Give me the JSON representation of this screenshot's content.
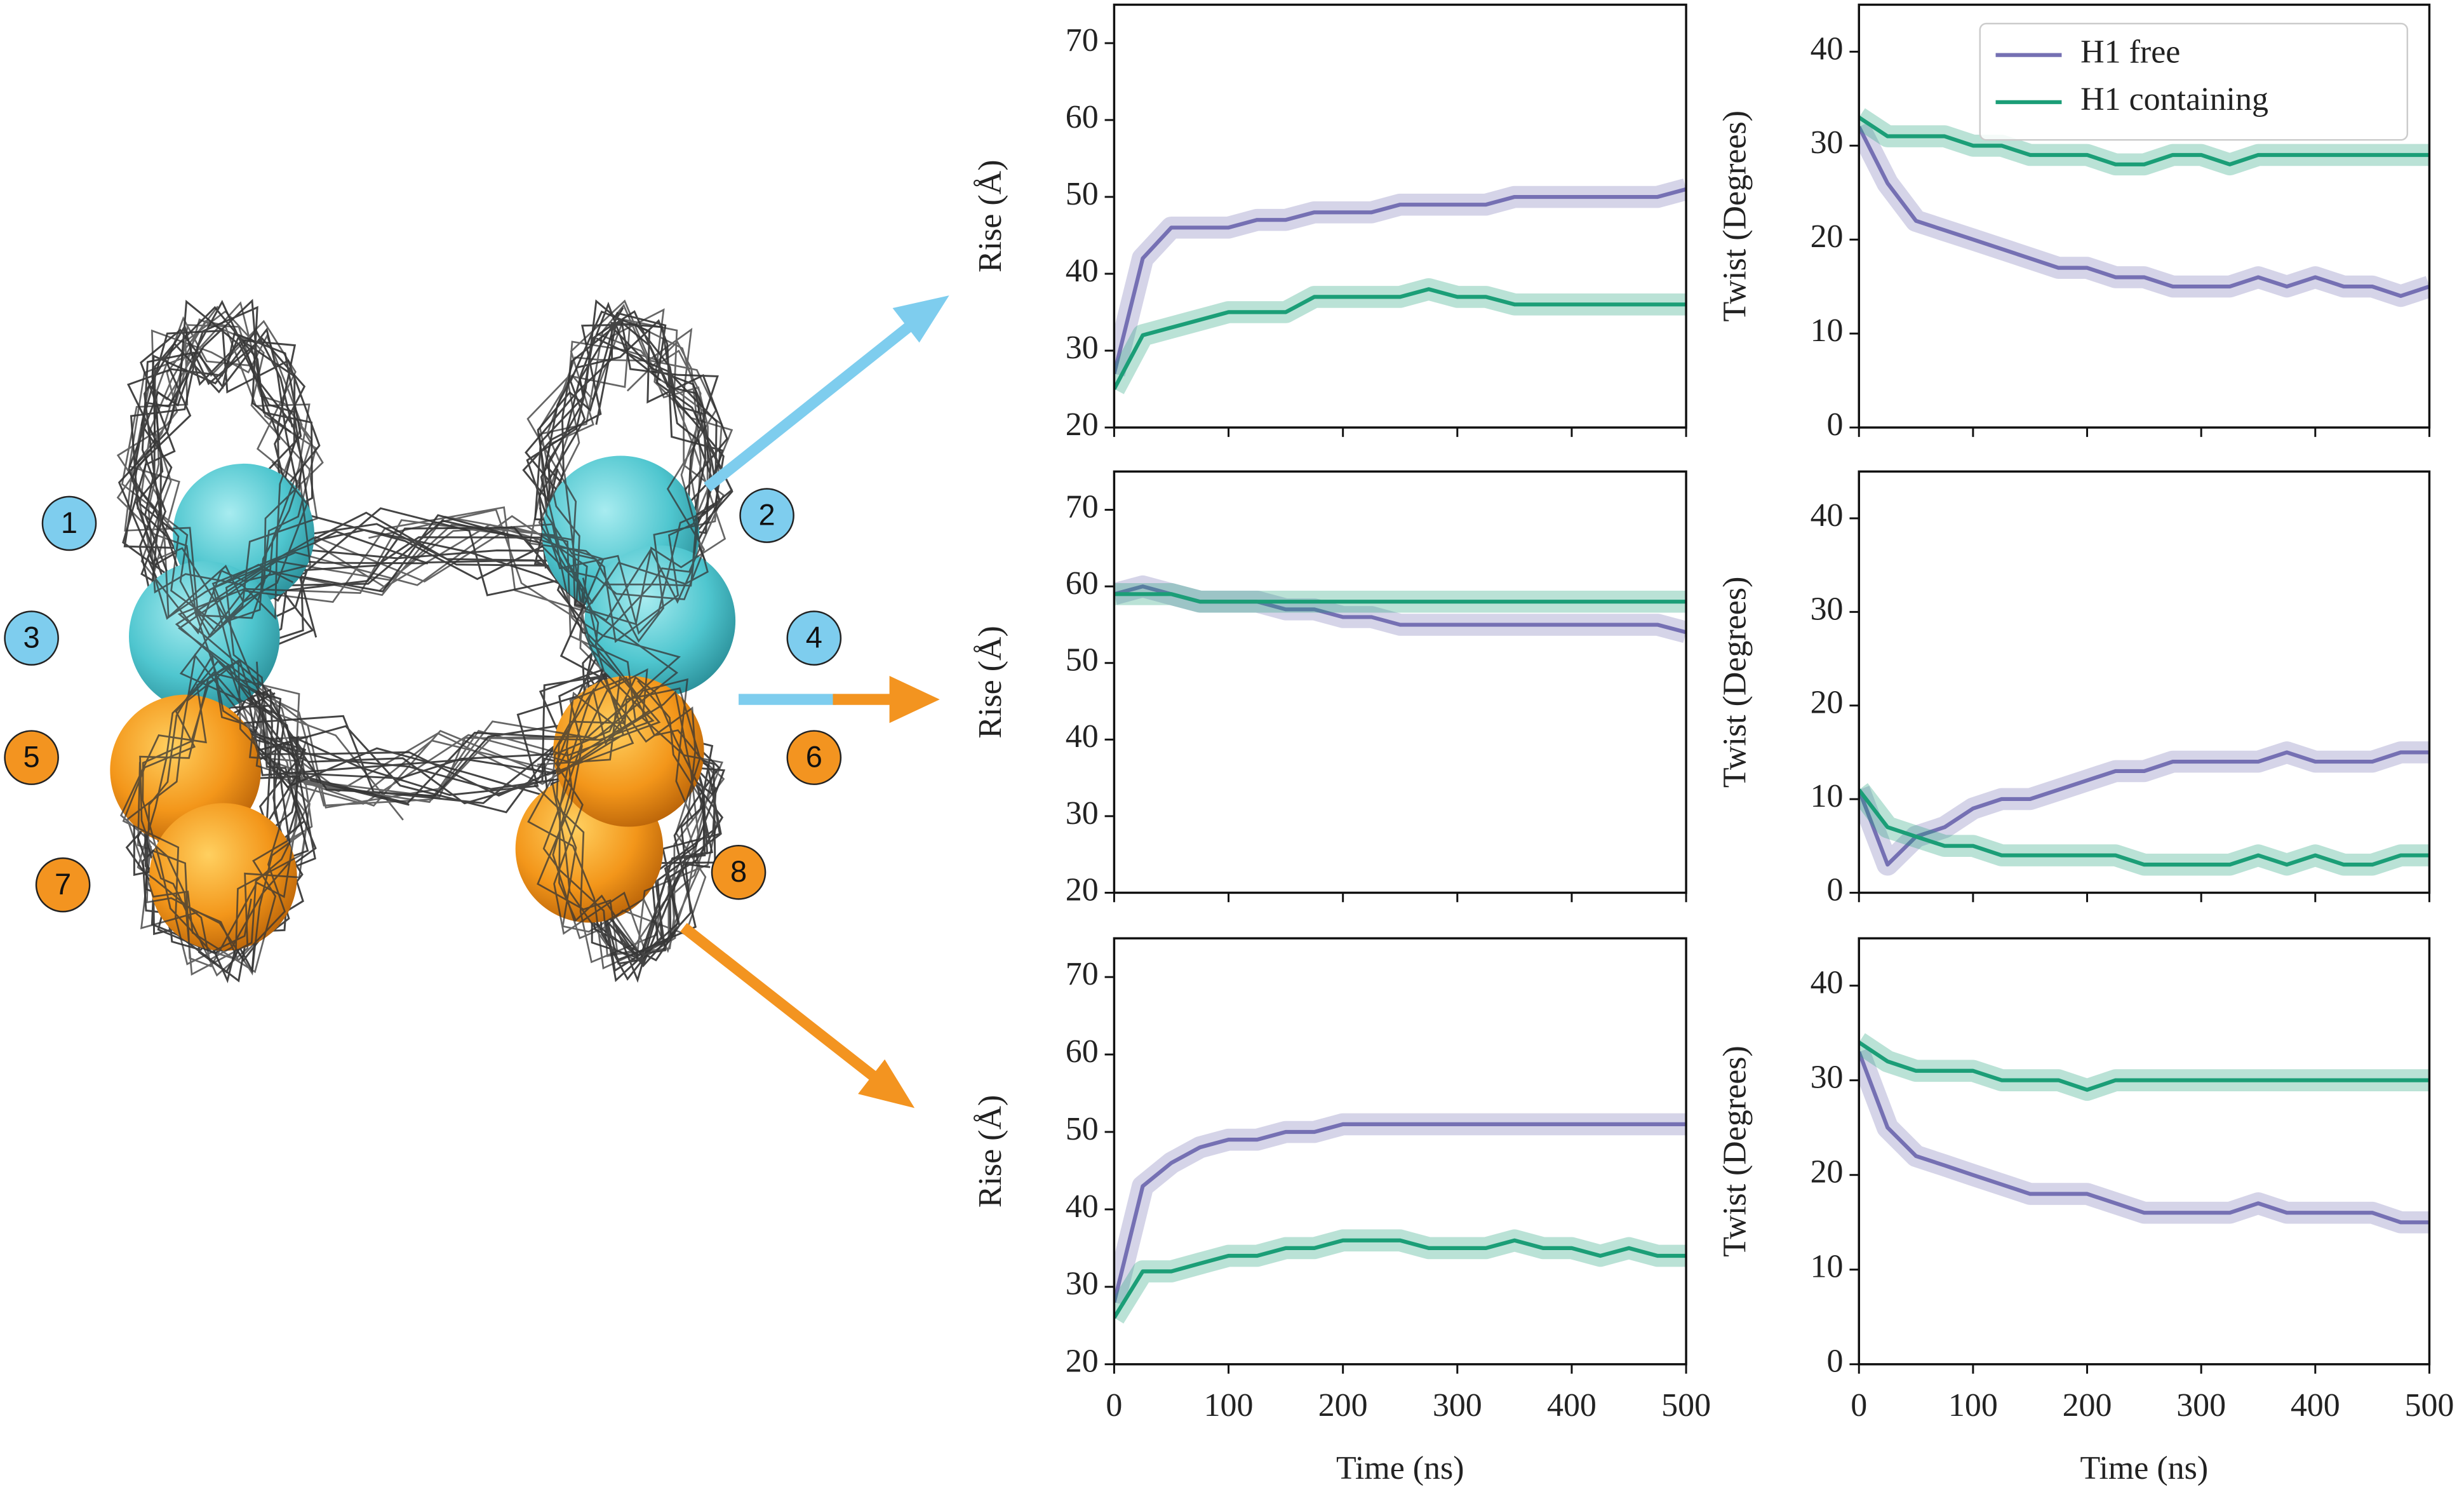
{
  "chart_data": [
    {
      "type": "line",
      "ylabel": "Rise (Å)",
      "x": [
        0,
        25,
        50,
        75,
        100,
        125,
        150,
        175,
        200,
        225,
        250,
        275,
        300,
        325,
        350,
        375,
        400,
        425,
        450,
        475,
        500
      ],
      "xlim": [
        0,
        500
      ],
      "xticks": [
        0,
        100,
        200,
        300,
        400,
        500
      ],
      "show_xticklabels": false,
      "ylim": [
        20,
        75
      ],
      "yticks": [
        20,
        30,
        40,
        50,
        60,
        70
      ],
      "series": [
        {
          "color": "#7570b3",
          "values": [
            27,
            42,
            46,
            46,
            46,
            47,
            47,
            48,
            48,
            48,
            49,
            49,
            49,
            49,
            50,
            50,
            50,
            50,
            50,
            50,
            51
          ]
        },
        {
          "color": "#1b9e77",
          "values": [
            25,
            32,
            33,
            34,
            35,
            35,
            35,
            37,
            37,
            37,
            37,
            38,
            37,
            37,
            36,
            36,
            36,
            36,
            36,
            36,
            36
          ]
        }
      ]
    },
    {
      "type": "line",
      "ylabel": "Twist (Degrees)",
      "x": [
        0,
        25,
        50,
        75,
        100,
        125,
        150,
        175,
        200,
        225,
        250,
        275,
        300,
        325,
        350,
        375,
        400,
        425,
        450,
        475,
        500
      ],
      "xlim": [
        0,
        500
      ],
      "xticks": [
        0,
        100,
        200,
        300,
        400,
        500
      ],
      "show_xticklabels": false,
      "ylim": [
        0,
        45
      ],
      "yticks": [
        0,
        10,
        20,
        30,
        40
      ],
      "legend": "upper right",
      "series": [
        {
          "name": "H1 free",
          "color": "#7570b3",
          "values": [
            32,
            26,
            22,
            21,
            20,
            19,
            18,
            17,
            17,
            16,
            16,
            15,
            15,
            15,
            16,
            15,
            16,
            15,
            15,
            14,
            15
          ]
        },
        {
          "name": "H1 containing",
          "color": "#1b9e77",
          "values": [
            33,
            31,
            31,
            31,
            30,
            30,
            29,
            29,
            29,
            28,
            28,
            29,
            29,
            28,
            29,
            29,
            29,
            29,
            29,
            29,
            29
          ]
        }
      ]
    },
    {
      "type": "line",
      "ylabel": "Rise (Å)",
      "x": [
        0,
        25,
        50,
        75,
        100,
        125,
        150,
        175,
        200,
        225,
        250,
        275,
        300,
        325,
        350,
        375,
        400,
        425,
        450,
        475,
        500
      ],
      "xlim": [
        0,
        500
      ],
      "xticks": [
        0,
        100,
        200,
        300,
        400,
        500
      ],
      "show_xticklabels": false,
      "ylim": [
        20,
        75
      ],
      "yticks": [
        20,
        30,
        40,
        50,
        60,
        70
      ],
      "series": [
        {
          "color": "#7570b3",
          "values": [
            59,
            60,
            59,
            58,
            58,
            58,
            57,
            57,
            56,
            56,
            55,
            55,
            55,
            55,
            55,
            55,
            55,
            55,
            55,
            55,
            54
          ]
        },
        {
          "color": "#1b9e77",
          "values": [
            59,
            59,
            59,
            58,
            58,
            58,
            58,
            58,
            58,
            58,
            58,
            58,
            58,
            58,
            58,
            58,
            58,
            58,
            58,
            58,
            58
          ]
        }
      ]
    },
    {
      "type": "line",
      "ylabel": "Twist (Degrees)",
      "x": [
        0,
        25,
        50,
        75,
        100,
        125,
        150,
        175,
        200,
        225,
        250,
        275,
        300,
        325,
        350,
        375,
        400,
        425,
        450,
        475,
        500
      ],
      "xlim": [
        0,
        500
      ],
      "xticks": [
        0,
        100,
        200,
        300,
        400,
        500
      ],
      "show_xticklabels": false,
      "ylim": [
        0,
        45
      ],
      "yticks": [
        0,
        10,
        20,
        30,
        40
      ],
      "series": [
        {
          "color": "#7570b3",
          "values": [
            11,
            3,
            6,
            7,
            9,
            10,
            10,
            11,
            12,
            13,
            13,
            14,
            14,
            14,
            14,
            15,
            14,
            14,
            14,
            15,
            15
          ]
        },
        {
          "color": "#1b9e77",
          "values": [
            11,
            7,
            6,
            5,
            5,
            4,
            4,
            4,
            4,
            4,
            3,
            3,
            3,
            3,
            4,
            3,
            4,
            3,
            3,
            4,
            4
          ]
        }
      ]
    },
    {
      "type": "line",
      "ylabel": "Rise (Å)",
      "xlabel": "Time (ns)",
      "x": [
        0,
        25,
        50,
        75,
        100,
        125,
        150,
        175,
        200,
        225,
        250,
        275,
        300,
        325,
        350,
        375,
        400,
        425,
        450,
        475,
        500
      ],
      "xlim": [
        0,
        500
      ],
      "xticks": [
        0,
        100,
        200,
        300,
        400,
        500
      ],
      "show_xticklabels": true,
      "ylim": [
        20,
        75
      ],
      "yticks": [
        20,
        30,
        40,
        50,
        60,
        70
      ],
      "series": [
        {
          "color": "#7570b3",
          "values": [
            28,
            43,
            46,
            48,
            49,
            49,
            50,
            50,
            51,
            51,
            51,
            51,
            51,
            51,
            51,
            51,
            51,
            51,
            51,
            51,
            51
          ]
        },
        {
          "color": "#1b9e77",
          "values": [
            26,
            32,
            32,
            33,
            34,
            34,
            35,
            35,
            36,
            36,
            36,
            35,
            35,
            35,
            36,
            35,
            35,
            34,
            35,
            34,
            34
          ]
        }
      ]
    },
    {
      "type": "line",
      "ylabel": "Twist (Degrees)",
      "xlabel": "Time (ns)",
      "x": [
        0,
        25,
        50,
        75,
        100,
        125,
        150,
        175,
        200,
        225,
        250,
        275,
        300,
        325,
        350,
        375,
        400,
        425,
        450,
        475,
        500
      ],
      "xlim": [
        0,
        500
      ],
      "xticks": [
        0,
        100,
        200,
        300,
        400,
        500
      ],
      "show_xticklabels": true,
      "ylim": [
        0,
        45
      ],
      "yticks": [
        0,
        10,
        20,
        30,
        40
      ],
      "series": [
        {
          "color": "#7570b3",
          "values": [
            33,
            25,
            22,
            21,
            20,
            19,
            18,
            18,
            18,
            17,
            16,
            16,
            16,
            16,
            17,
            16,
            16,
            16,
            16,
            15,
            15
          ]
        },
        {
          "color": "#1b9e77",
          "values": [
            34,
            32,
            31,
            31,
            31,
            30,
            30,
            30,
            29,
            30,
            30,
            30,
            30,
            30,
            30,
            30,
            30,
            30,
            30,
            30,
            30
          ]
        }
      ]
    }
  ],
  "diagram": {
    "labels": [
      "1",
      "2",
      "3",
      "4",
      "5",
      "6",
      "7",
      "8"
    ]
  }
}
